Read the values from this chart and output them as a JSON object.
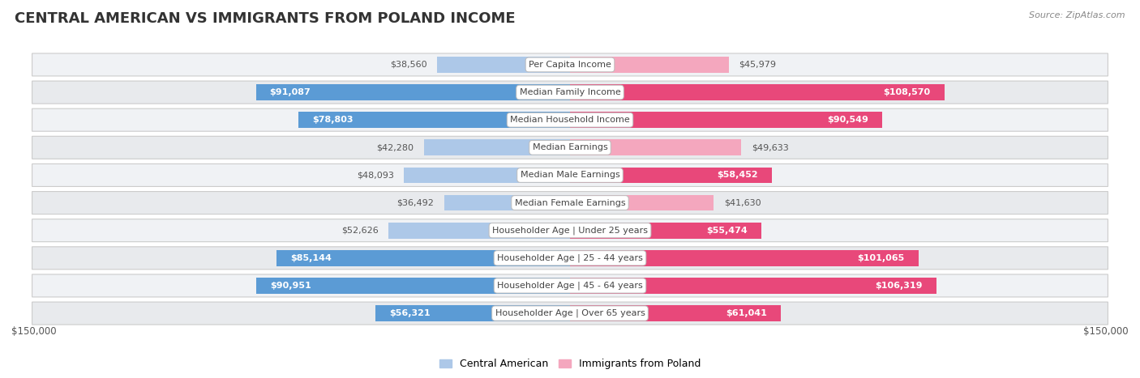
{
  "title": "CENTRAL AMERICAN VS IMMIGRANTS FROM POLAND INCOME",
  "source": "Source: ZipAtlas.com",
  "categories": [
    "Per Capita Income",
    "Median Family Income",
    "Median Household Income",
    "Median Earnings",
    "Median Male Earnings",
    "Median Female Earnings",
    "Householder Age | Under 25 years",
    "Householder Age | 25 - 44 years",
    "Householder Age | 45 - 64 years",
    "Householder Age | Over 65 years"
  ],
  "central_american": [
    38560,
    91087,
    78803,
    42280,
    48093,
    36492,
    52626,
    85144,
    90951,
    56321
  ],
  "poland": [
    45979,
    108570,
    90549,
    49633,
    58452,
    41630,
    55474,
    101065,
    106319,
    61041
  ],
  "ca_labels": [
    "$38,560",
    "$91,087",
    "$78,803",
    "$42,280",
    "$48,093",
    "$36,492",
    "$52,626",
    "$85,144",
    "$90,951",
    "$56,321"
  ],
  "poland_labels": [
    "$45,979",
    "$108,570",
    "$90,549",
    "$49,633",
    "$58,452",
    "$41,630",
    "$55,474",
    "$101,065",
    "$106,319",
    "$61,041"
  ],
  "ca_color_light": "#adc8e8",
  "ca_color_dark": "#5b9bd5",
  "poland_color_light": "#f4a7be",
  "poland_color_dark": "#e8487a",
  "max_value": 150000,
  "bar_height": 0.58,
  "row_bg_even": "#f0f2f5",
  "row_bg_odd": "#e8eaed",
  "label_color_inside": "#ffffff",
  "label_color_outside": "#555555",
  "legend_ca": "Central American",
  "legend_poland": "Immigrants from Poland",
  "axis_label_left": "$150,000",
  "axis_label_right": "$150,000",
  "title_fontsize": 13,
  "label_fontsize": 8,
  "cat_fontsize": 8,
  "ca_inside_threshold": 55000,
  "pl_inside_threshold": 55000
}
